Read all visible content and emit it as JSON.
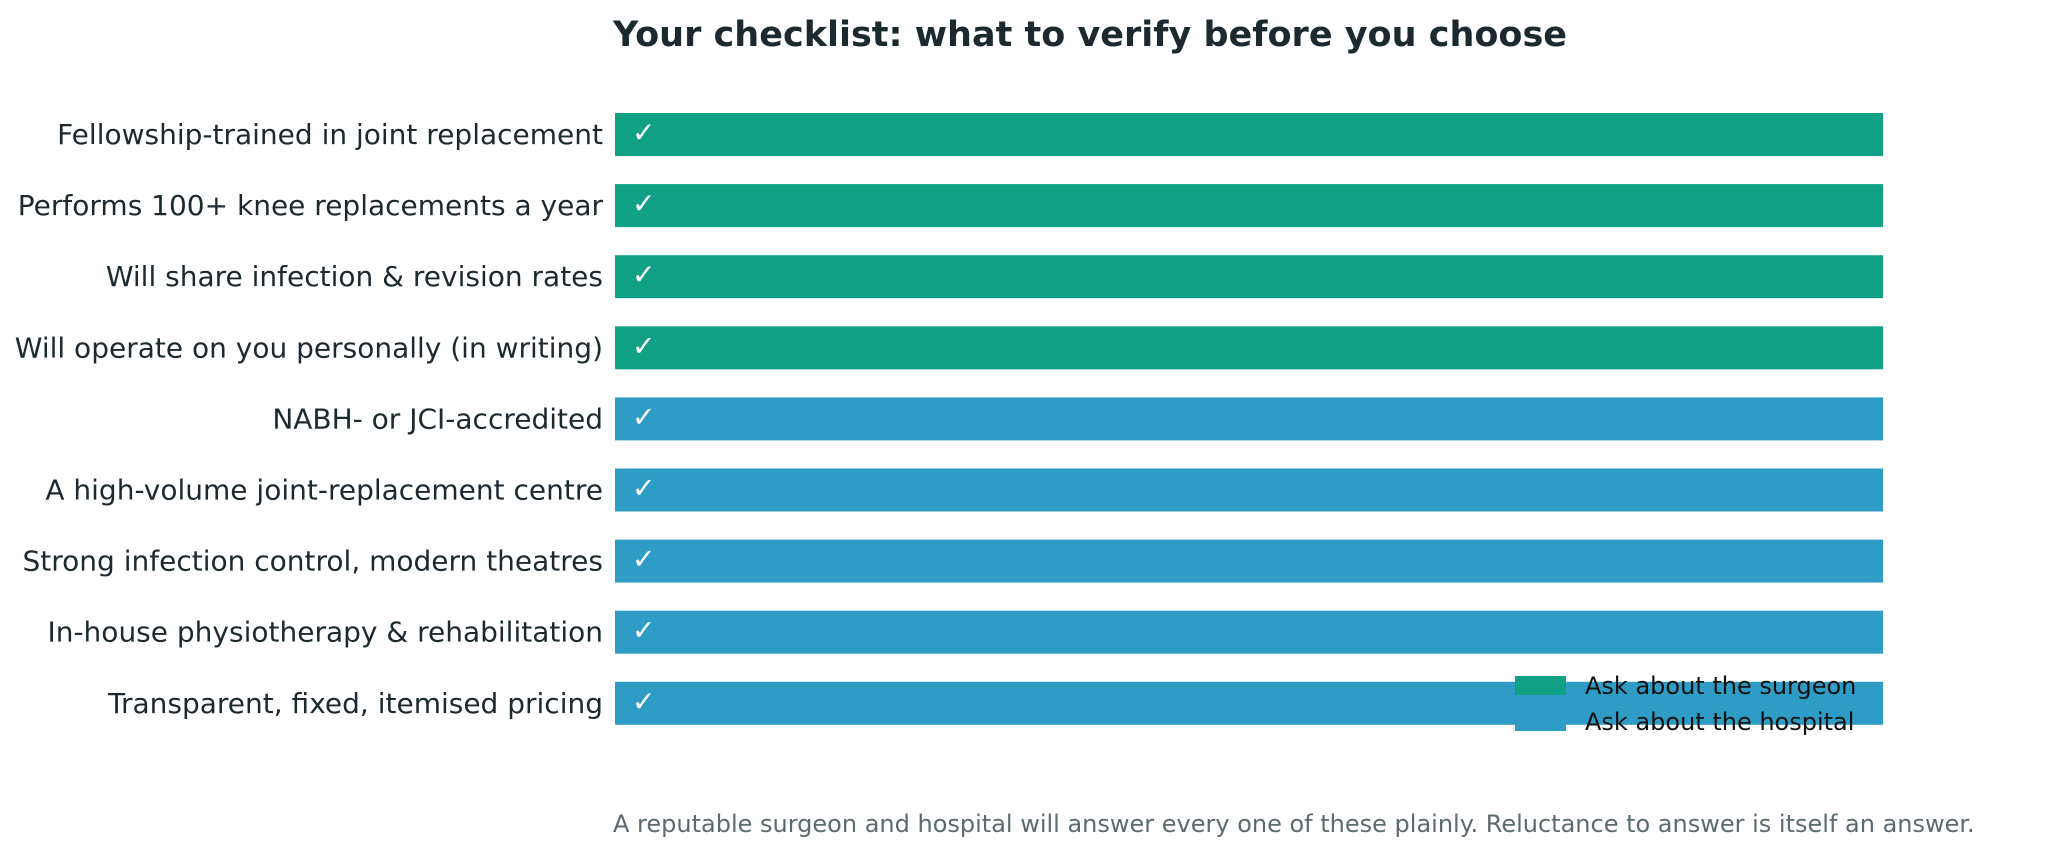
{
  "chart_data": {
    "type": "bar",
    "orientation": "horizontal",
    "title": "Your checklist: what to verify before you choose",
    "categories": [
      "Fellowship-trained in joint replacement",
      "Performs 100+ knee replacements a year",
      "Will share infection & revision rates",
      "Will operate on you personally (in writing)",
      "NABH- or JCI-accredited",
      "A high-volume joint-replacement centre",
      "Strong infection control, modern theatres",
      "In-house physiotherapy & rehabilitation",
      "Transparent, fixed, itemised pricing"
    ],
    "values": [
      1,
      1,
      1,
      1,
      1,
      1,
      1,
      1,
      1
    ],
    "groups": [
      "Ask about the surgeon",
      "Ask about the surgeon",
      "Ask about the surgeon",
      "Ask about the surgeon",
      "Ask about the hospital",
      "Ask about the hospital",
      "Ask about the hospital",
      "Ask about the hospital",
      "Ask about the hospital"
    ],
    "bar_label": "✓",
    "xlim": [
      0,
      1
    ],
    "grid": false,
    "legend": {
      "placement": "bottom-right",
      "entries": [
        {
          "name": "Ask about the surgeon",
          "color": "#0fa085"
        },
        {
          "name": "Ask about the hospital",
          "color": "#2f9cc6"
        }
      ]
    },
    "footnote": "A reputable surgeon and hospital will answer every one of these plainly. Reluctance to answer is itself an answer."
  }
}
